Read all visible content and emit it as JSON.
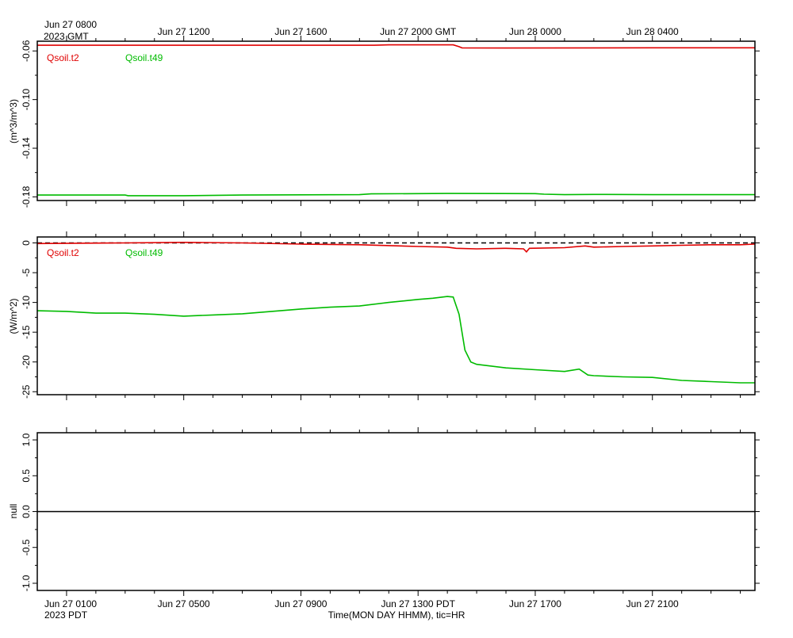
{
  "header": {
    "first_tick_line1": "Jun 27 0800",
    "first_tick_line2": "2023 GMT",
    "top_tick_labels": [
      "Jun 27 1200",
      "Jun 27 1600",
      "Jun 27 2000 GMT",
      "Jun 28 0000",
      "Jun 28 0400"
    ]
  },
  "footer": {
    "first_tick_line1": "Jun 27 0100",
    "first_tick_line2": "2023 PDT",
    "bottom_tick_labels": [
      "Jun 27 0500",
      "Jun 27 0900",
      "Jun 27 1300 PDT",
      "Jun 27 1700",
      "Jun 27 2100"
    ],
    "xlabel": "Time(MON DAY HHMM), tic=HR"
  },
  "colors": {
    "red": "#e00000",
    "green": "#00bb00",
    "axis": "#000000"
  },
  "chart_data": [
    {
      "type": "line",
      "ylabel": "(m^3/m^3)",
      "ylim": [
        -0.183,
        -0.052
      ],
      "yticks": [
        -0.06,
        -0.1,
        -0.14,
        -0.18
      ],
      "ytick_labels": [
        "-0.06",
        "-0.10",
        "-0.14",
        "-0.18"
      ],
      "x_unit": "hours since Jun 27 0100 PDT",
      "xlim": [
        -1,
        23.5
      ],
      "series": [
        {
          "name": "Qsoil.t2",
          "color": "#e00000",
          "points": [
            [
              -1,
              -0.0553
            ],
            [
              10.5,
              -0.0553
            ],
            [
              11,
              -0.055
            ],
            [
              13.2,
              -0.055
            ],
            [
              13.4,
              -0.0565
            ],
            [
              13.5,
              -0.0575
            ],
            [
              15,
              -0.0576
            ],
            [
              20,
              -0.0574
            ],
            [
              23.5,
              -0.0574
            ]
          ]
        },
        {
          "name": "Qsoil.t49",
          "color": "#00bb00",
          "points": [
            [
              -1,
              -0.1785
            ],
            [
              2,
              -0.1785
            ],
            [
              2.1,
              -0.179
            ],
            [
              4,
              -0.179
            ],
            [
              6,
              -0.1785
            ],
            [
              10,
              -0.1782
            ],
            [
              10.4,
              -0.1775
            ],
            [
              13,
              -0.1772
            ],
            [
              16,
              -0.1773
            ],
            [
              16.3,
              -0.1778
            ],
            [
              17,
              -0.1782
            ],
            [
              18,
              -0.178
            ],
            [
              20,
              -0.1782
            ],
            [
              23.5,
              -0.1782
            ]
          ]
        }
      ]
    },
    {
      "type": "line",
      "ylabel": "(W/m^2)",
      "ylim": [
        -25.5,
        1.0
      ],
      "yticks": [
        0,
        -5,
        -10,
        -15,
        -20,
        -25
      ],
      "ytick_labels": [
        "0",
        "-5",
        "-10",
        "-15",
        "-20",
        "-25"
      ],
      "zero_line": {
        "y": 0,
        "style": "dashed"
      },
      "x_unit": "hours since Jun 27 0100 PDT",
      "xlim": [
        -1,
        23.5
      ],
      "series": [
        {
          "name": "Qsoil.t2",
          "color": "#e00000",
          "points": [
            [
              -1,
              -0.1
            ],
            [
              2,
              0
            ],
            [
              4,
              0.1
            ],
            [
              6,
              0
            ],
            [
              8,
              -0.2
            ],
            [
              10,
              -0.3
            ],
            [
              12,
              -0.6
            ],
            [
              13,
              -0.7
            ],
            [
              13.3,
              -0.9
            ],
            [
              14,
              -1.0
            ],
            [
              15,
              -0.9
            ],
            [
              15.6,
              -1.0
            ],
            [
              15.7,
              -1.5
            ],
            [
              15.8,
              -0.9
            ],
            [
              17,
              -0.8
            ],
            [
              17.7,
              -0.5
            ],
            [
              18,
              -0.7
            ],
            [
              19,
              -0.6
            ],
            [
              20,
              -0.5
            ],
            [
              21,
              -0.4
            ],
            [
              22,
              -0.3
            ],
            [
              23,
              -0.3
            ],
            [
              23.5,
              -0.2
            ]
          ]
        },
        {
          "name": "Qsoil.t49",
          "color": "#00bb00",
          "points": [
            [
              -1,
              -11.4
            ],
            [
              0,
              -11.5
            ],
            [
              1,
              -11.8
            ],
            [
              2,
              -11.8
            ],
            [
              3,
              -12.0
            ],
            [
              4,
              -12.3
            ],
            [
              5,
              -12.1
            ],
            [
              6,
              -11.9
            ],
            [
              7,
              -11.5
            ],
            [
              8,
              -11.1
            ],
            [
              9,
              -10.8
            ],
            [
              10,
              -10.6
            ],
            [
              11,
              -10.0
            ],
            [
              12,
              -9.5
            ],
            [
              12.5,
              -9.3
            ],
            [
              13,
              -9.0
            ],
            [
              13.2,
              -9.1
            ],
            [
              13.4,
              -12.0
            ],
            [
              13.6,
              -18.0
            ],
            [
              13.8,
              -20.0
            ],
            [
              14,
              -20.4
            ],
            [
              15,
              -21.0
            ],
            [
              16,
              -21.3
            ],
            [
              17,
              -21.6
            ],
            [
              17.5,
              -21.2
            ],
            [
              17.8,
              -22.2
            ],
            [
              18,
              -22.3
            ],
            [
              19,
              -22.5
            ],
            [
              20,
              -22.6
            ],
            [
              21,
              -23.1
            ],
            [
              22,
              -23.3
            ],
            [
              23,
              -23.5
            ],
            [
              23.5,
              -23.5
            ]
          ]
        }
      ]
    },
    {
      "type": "line",
      "ylabel": "null",
      "ylim": [
        -1.1,
        1.1
      ],
      "yticks": [
        1.0,
        0.5,
        0.0,
        -0.5,
        -1.0
      ],
      "ytick_labels": [
        "1.0",
        "0.5",
        "0.0",
        "-0.5",
        "-1.0"
      ],
      "zero_line": {
        "y": 0,
        "style": "solid"
      },
      "xlim": [
        -1,
        23.5
      ],
      "series": []
    }
  ]
}
